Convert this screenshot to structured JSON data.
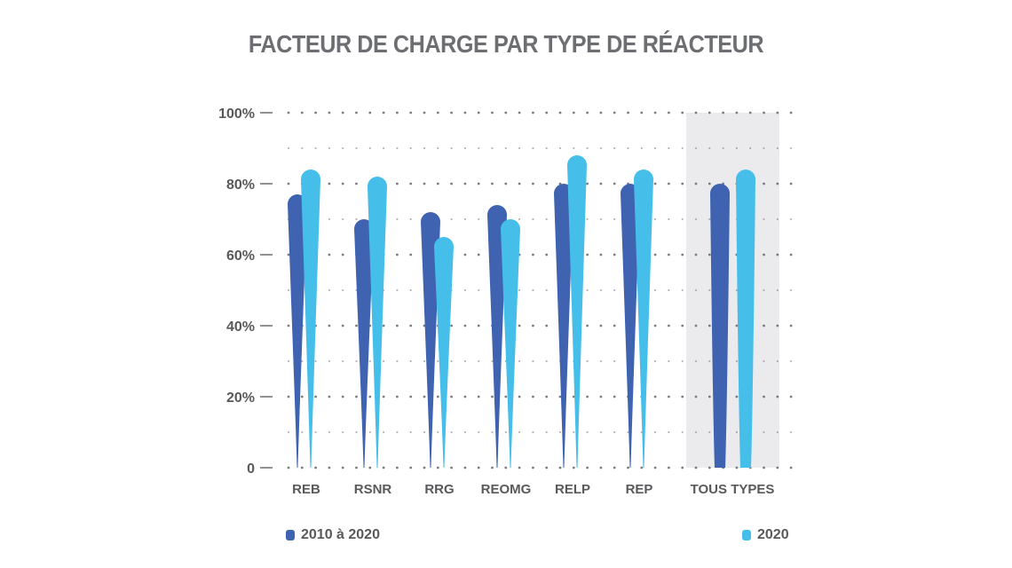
{
  "chart_data": {
    "type": "bar",
    "title": "FACTEUR DE CHARGE PAR TYPE DE RÉACTEUR",
    "categories": [
      "REB",
      "RSNR",
      "RRG",
      "REOMG",
      "RELP",
      "REP",
      "TOUS TYPES"
    ],
    "highlight_category": "TOUS TYPES",
    "series": [
      {
        "name": "2010 à 2020",
        "color": "#3f63b1",
        "values": [
          77,
          70,
          72,
          74,
          80,
          80,
          80
        ]
      },
      {
        "name": "2020",
        "color": "#45bfea",
        "values": [
          84,
          82,
          65,
          70,
          88,
          84,
          84
        ]
      }
    ],
    "yticks": [
      "0",
      "20%",
      "40%",
      "60%",
      "80%",
      "100%"
    ],
    "ylim": [
      0,
      100
    ],
    "grid": "dotted",
    "legend_position": "bottom",
    "colors": {
      "title": "#6d6e71",
      "axis_text": "#58595b",
      "highlight_bg": "#ebebee",
      "grid": "#6d6e71"
    }
  }
}
